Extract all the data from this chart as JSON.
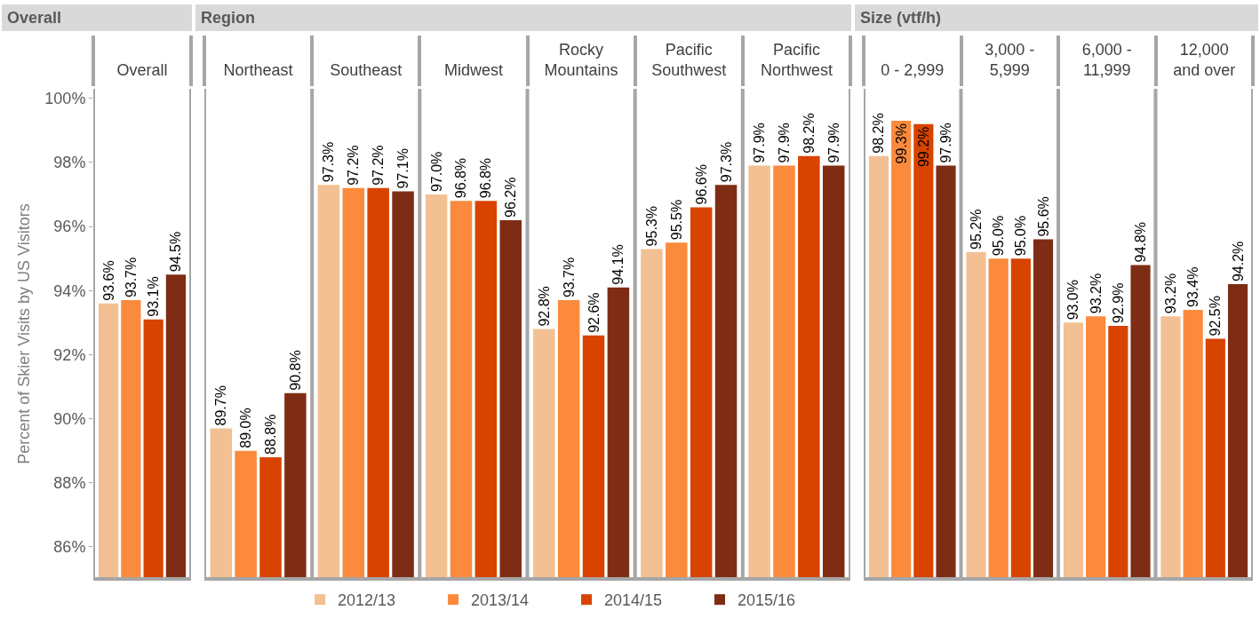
{
  "chart_data": [
    {
      "type": "bar",
      "title": "Overall",
      "ylabel": "Percent of Skier Visits by US Visitors",
      "categories": [
        "Overall"
      ],
      "ylim": [
        85,
        100.3
      ],
      "yticks": [
        {
          "value": 86,
          "label": "86%"
        },
        {
          "value": 88,
          "label": "88%"
        },
        {
          "value": 90,
          "label": "90%"
        },
        {
          "value": 92,
          "label": "92%"
        },
        {
          "value": 94,
          "label": "94%"
        },
        {
          "value": 96,
          "label": "96%"
        },
        {
          "value": 98,
          "label": "98%"
        },
        {
          "value": 100,
          "label": "100%"
        }
      ],
      "grid": false,
      "legend": false,
      "series": [
        {
          "color": "#f2c092",
          "values": [
            93.6
          ],
          "value_labels": [
            "93.6%"
          ]
        },
        {
          "color": "#fb8a3c",
          "values": [
            93.7
          ],
          "value_labels": [
            "93.7%"
          ]
        },
        {
          "color": "#d84300",
          "values": [
            93.1
          ],
          "value_labels": [
            "93.1%"
          ]
        },
        {
          "color": "#7e2d14",
          "values": [
            94.5
          ],
          "value_labels": [
            "94.5%"
          ]
        }
      ]
    },
    {
      "type": "bar",
      "title": "Region",
      "categories": [
        "Northeast",
        "Southeast",
        "Midwest",
        "Rocky Mountains",
        "Pacific Southwest",
        "Pacific Northwest"
      ],
      "ylim": [
        85,
        100.3
      ],
      "tick_labels": "x",
      "grid": false,
      "legend": "bottom",
      "series": [
        {
          "name": "2012/13",
          "color": "#f2c092",
          "values": [
            89.7,
            97.3,
            97.0,
            92.8,
            95.3,
            97.9
          ],
          "value_labels": [
            "89.7%",
            "97.3%",
            "97.0%",
            "92.8%",
            "95.3%",
            "97.9%"
          ]
        },
        {
          "name": "2013/14",
          "color": "#fb8a3c",
          "values": [
            89.0,
            97.2,
            96.8,
            93.7,
            95.5,
            97.9
          ],
          "value_labels": [
            "89.0%",
            "97.2%",
            "96.8%",
            "93.7%",
            "95.5%",
            "97.9%"
          ]
        },
        {
          "name": "2014/15",
          "color": "#d84300",
          "values": [
            88.8,
            97.2,
            96.8,
            92.6,
            96.6,
            98.2
          ],
          "value_labels": [
            "88.8%",
            "97.2%",
            "96.8%",
            "92.6%",
            "96.6%",
            "98.2%"
          ]
        },
        {
          "name": "2015/16",
          "color": "#7e2d14",
          "values": [
            90.8,
            97.1,
            96.2,
            94.1,
            97.3,
            97.9
          ],
          "value_labels": [
            "90.8%",
            "97.1%",
            "96.2%",
            "94.1%",
            "97.3%",
            "97.9%"
          ]
        }
      ]
    },
    {
      "type": "bar",
      "title": "Size (vtf/h)",
      "categories": [
        "0 - 2,999",
        "3,000 - 5,999",
        "6,000 - 11,999",
        "12,000 and over"
      ],
      "ylim": [
        85,
        100.3
      ],
      "tick_labels": "x",
      "grid": false,
      "legend": false,
      "series": [
        {
          "color": "#f2c092",
          "values": [
            98.2,
            95.2,
            93.0,
            93.2
          ],
          "value_labels": [
            "98.2%",
            "95.2%",
            "93.0%",
            "93.2%"
          ]
        },
        {
          "color": "#fb8a3c",
          "values": [
            99.3,
            95.0,
            93.2,
            93.4
          ],
          "value_labels": [
            "99.3%",
            "95.0%",
            "93.2%",
            "93.4%"
          ]
        },
        {
          "color": "#d84300",
          "values": [
            99.2,
            95.0,
            92.9,
            92.5
          ],
          "value_labels": [
            "99.2%",
            "95.0%",
            "92.9%",
            "92.5%"
          ]
        },
        {
          "color": "#7e2d14",
          "values": [
            97.9,
            95.6,
            94.8,
            94.2
          ],
          "value_labels": [
            "97.9%",
            "95.6%",
            "94.8%",
            "94.2%"
          ]
        }
      ]
    }
  ]
}
